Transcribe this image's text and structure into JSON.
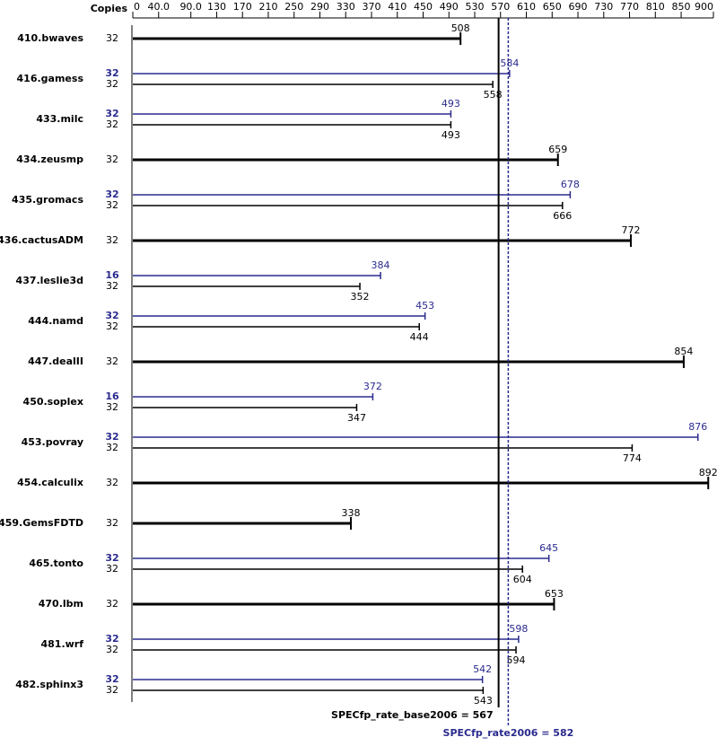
{
  "chart_data": {
    "type": "spec-bar",
    "copies_header": "Copies",
    "categories": [
      "410.bwaves",
      "416.gamess",
      "433.milc",
      "434.zeusmp",
      "435.gromacs",
      "436.cactusADM",
      "437.leslie3d",
      "444.namd",
      "447.dealII",
      "450.soplex",
      "453.povray",
      "454.calculix",
      "459.GemsFDTD",
      "465.tonto",
      "470.lbm",
      "481.wrf",
      "482.sphinx3"
    ],
    "base": {
      "color": "#000000",
      "copies": [
        32,
        32,
        32,
        32,
        32,
        32,
        32,
        32,
        32,
        32,
        32,
        32,
        32,
        32,
        32,
        32,
        32
      ],
      "values": [
        508,
        558,
        493,
        659,
        666,
        772,
        352,
        444,
        854,
        347,
        774,
        892,
        338,
        604,
        653,
        594,
        543
      ]
    },
    "peak": {
      "color": "#2b2b8f",
      "copies": [
        null,
        32,
        32,
        null,
        32,
        null,
        16,
        32,
        null,
        16,
        32,
        null,
        null,
        32,
        null,
        32,
        32
      ],
      "values": [
        null,
        584,
        493,
        null,
        678,
        null,
        384,
        453,
        null,
        372,
        876,
        null,
        null,
        645,
        null,
        598,
        542
      ]
    },
    "xlim": [
      0,
      900
    ],
    "xticks": [
      0,
      {
        "value": 40,
        "label": "40.0"
      },
      {
        "value": 90,
        "label": "90.0"
      },
      130,
      170,
      210,
      250,
      290,
      330,
      370,
      410,
      450,
      490,
      530,
      570,
      610,
      650,
      690,
      730,
      770,
      810,
      850,
      900
    ],
    "reference_lines": [
      {
        "label": "SPECfp_rate_base2006 = 567",
        "value": 567,
        "color": "#000000",
        "dashed": false
      },
      {
        "label": "SPECfp_rate2006 = 582",
        "value": 582,
        "color": "#2b2b8f",
        "dashed": true
      }
    ]
  }
}
